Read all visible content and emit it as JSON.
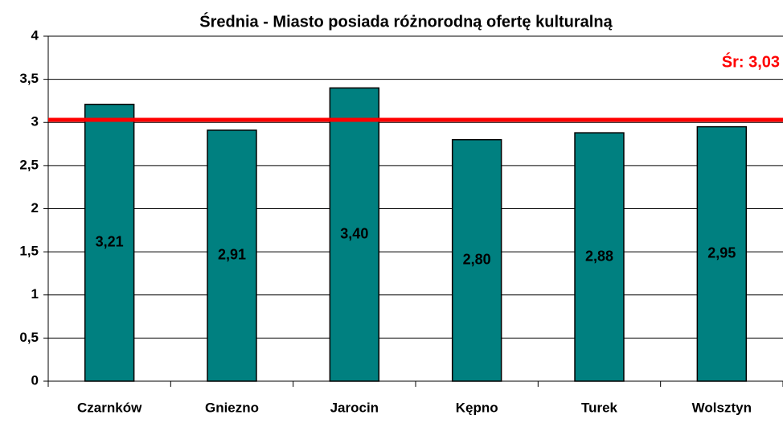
{
  "chart_data": {
    "type": "bar",
    "title": "Średnia - Miasto posiada różnorodną ofertę kulturalną",
    "categories": [
      "Czarnków",
      "Gniezno",
      "Jarocin",
      "Kępno",
      "Turek",
      "Wolsztyn"
    ],
    "values": [
      3.21,
      2.91,
      3.4,
      2.8,
      2.88,
      2.95
    ],
    "value_labels": [
      "3,21",
      "2,91",
      "3,40",
      "2,80",
      "2,88",
      "2,95"
    ],
    "color": "#008080",
    "ylim": [
      0,
      4
    ],
    "yticks": [
      0,
      {
        "value": 0.5,
        "label": "0,5"
      },
      1,
      {
        "value": 1.5,
        "label": "1,5"
      },
      2,
      {
        "value": 2.5,
        "label": "2,5"
      },
      3,
      {
        "value": 3.5,
        "label": "3,5"
      },
      4
    ],
    "grid": true,
    "reference_line": {
      "value": 3.03,
      "label": "Śr: 3,03",
      "color": "#ff0000"
    }
  }
}
